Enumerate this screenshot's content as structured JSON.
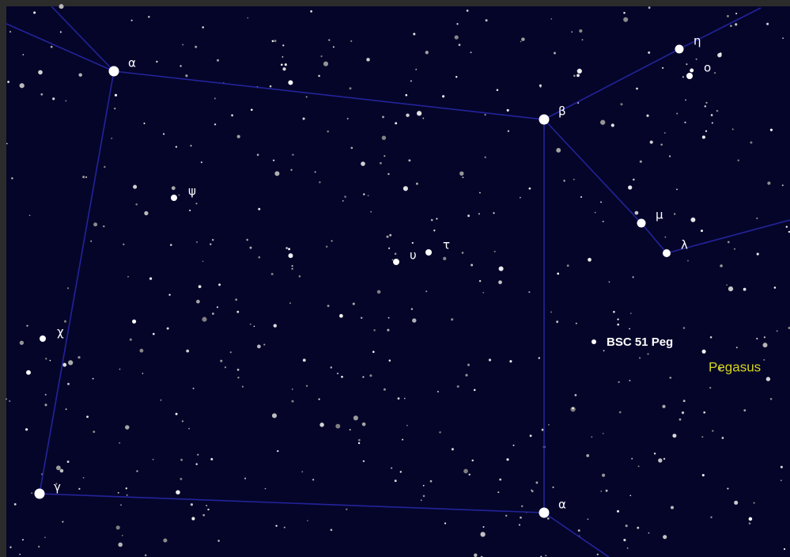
{
  "stars": [
    {
      "label": "α"
    },
    {
      "label": "β"
    },
    {
      "label": "η"
    },
    {
      "label": "ο"
    },
    {
      "label": "μ"
    },
    {
      "label": "λ"
    },
    {
      "label": "ψ"
    },
    {
      "label": "υ"
    },
    {
      "label": "τ"
    },
    {
      "label": "χ"
    },
    {
      "label": "γ"
    },
    {
      "label": "α"
    },
    {
      "label": "BSC 51 Peg"
    }
  ],
  "constellation": "Pegasus"
}
